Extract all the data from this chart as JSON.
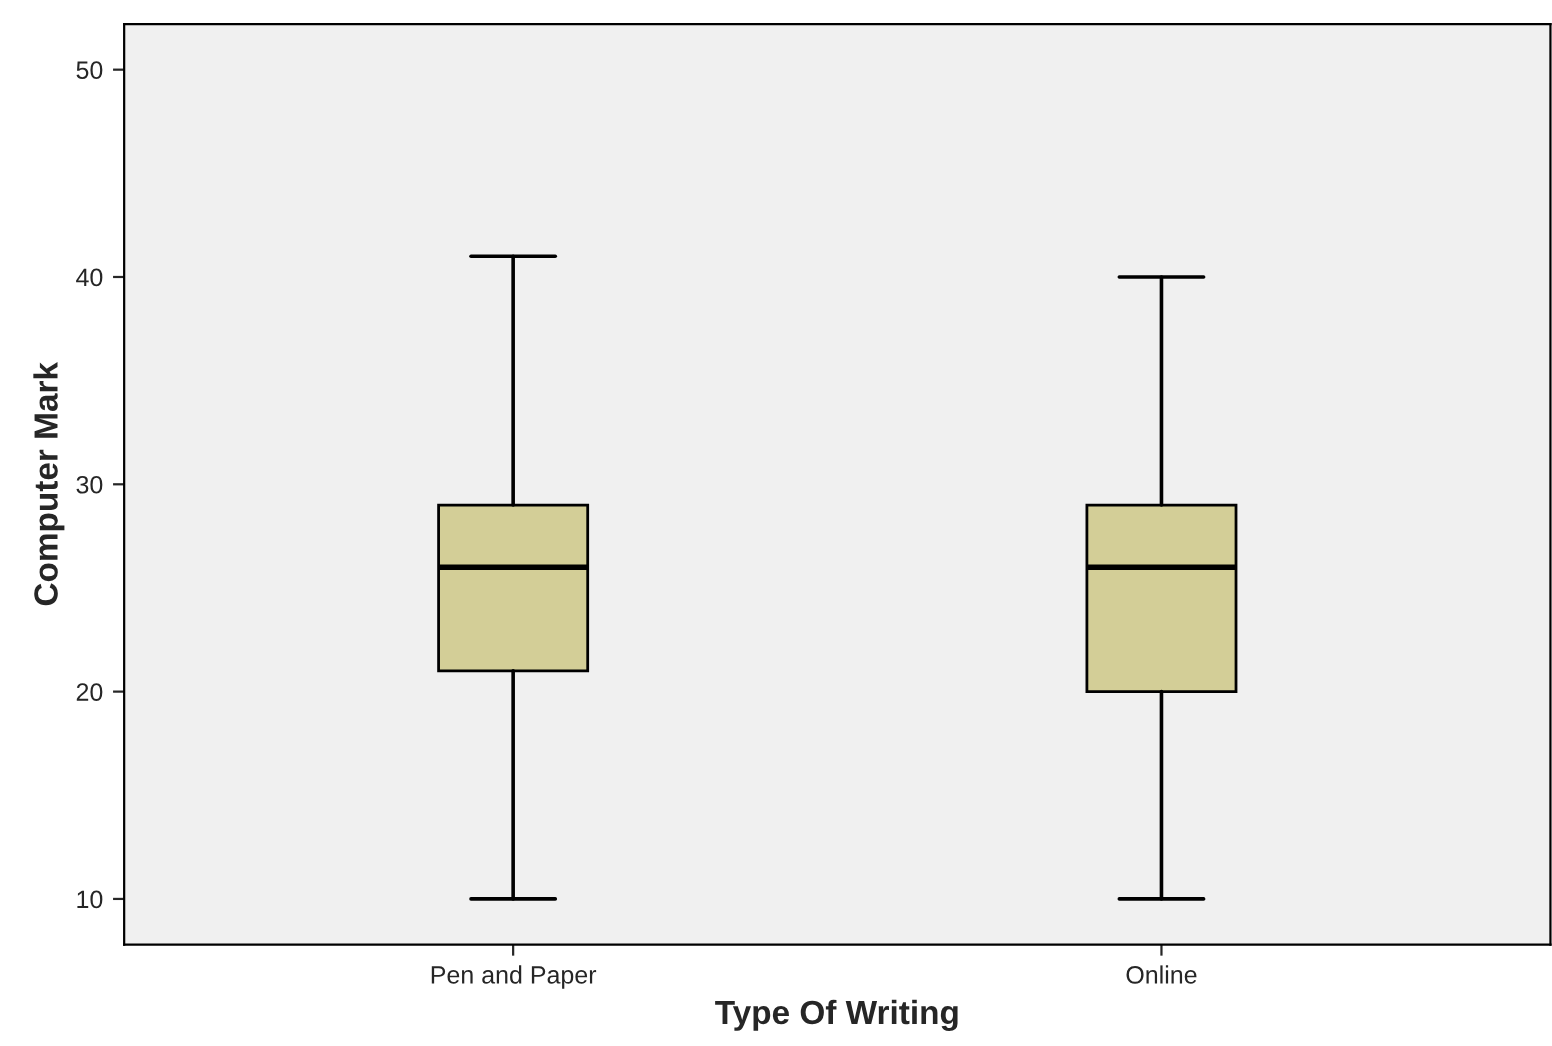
{
  "chart_data": {
    "type": "box",
    "xlabel": "Type Of Writing",
    "ylabel": "Computer Mark",
    "categories": [
      "Pen and Paper",
      "Online"
    ],
    "boxes": [
      {
        "low": 10,
        "q1": 21,
        "median": 26,
        "q3": 29,
        "high": 41
      },
      {
        "low": 10,
        "q1": 20,
        "median": 26,
        "q3": 29,
        "high": 40
      }
    ],
    "color": "#d3ce97",
    "ylim": [
      7.8,
      52.2
    ],
    "yticks": [
      10,
      20,
      30,
      40,
      50
    ],
    "grid": false,
    "legend": false
  }
}
